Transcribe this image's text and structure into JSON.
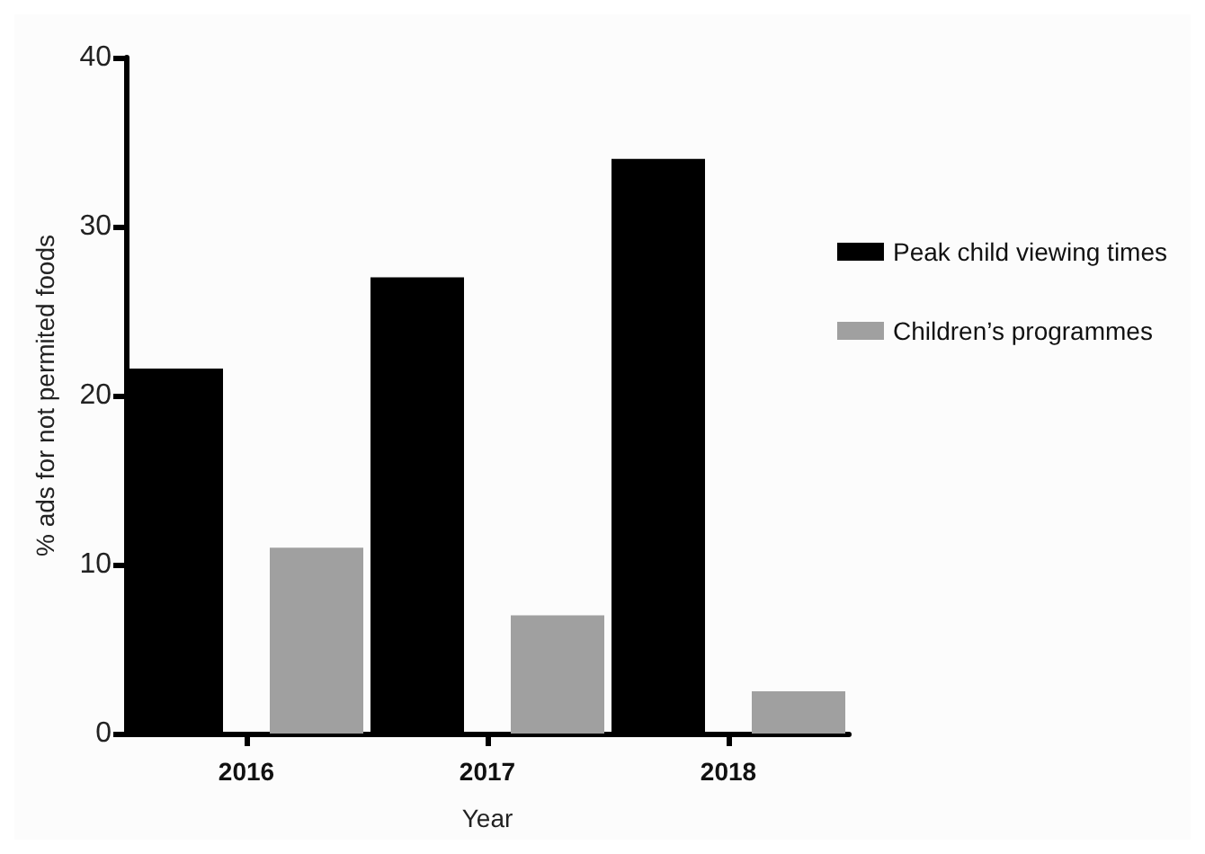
{
  "chart_data": {
    "type": "bar",
    "xlabel": "Year",
    "ylabel": "% ads for not permited foods",
    "categories": [
      "2016",
      "2017",
      "2018"
    ],
    "series": [
      {
        "name": "Peak child viewing times",
        "color": "#000000",
        "values": [
          21.6,
          27,
          34
        ]
      },
      {
        "name": "Children’s programmes",
        "color": "#a0a0a0",
        "values": [
          11,
          7,
          2.5
        ]
      }
    ],
    "ylim": [
      0,
      40
    ],
    "yticks": [
      0,
      10,
      20,
      30,
      40
    ],
    "grid": false,
    "legend": "right"
  }
}
